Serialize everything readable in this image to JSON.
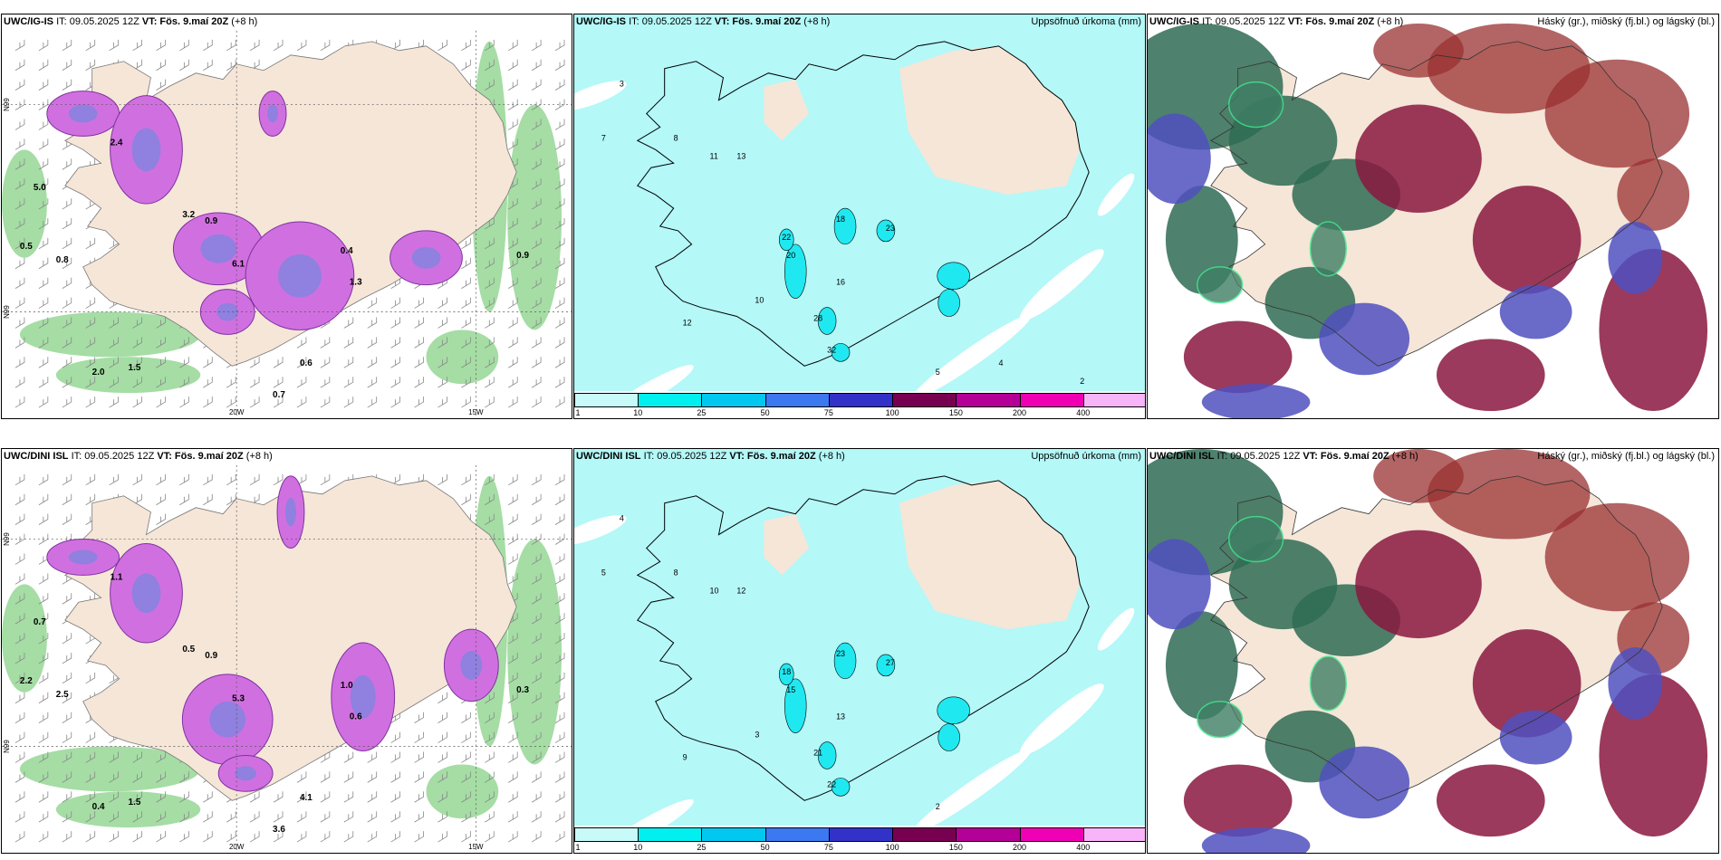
{
  "rows": [
    {
      "model": "UWC/IG-IS",
      "panels": [
        {
          "kind": "wind",
          "it": "IT: 09.05.2025 12Z",
          "vt_label": "VT:",
          "vt": "Fös. 9.maí 20Z",
          "lead": "(+8 h)",
          "right": "",
          "lon_labels": [
            "20W",
            "15W"
          ],
          "lat_labels": [
            "N99",
            "N99"
          ],
          "values": [
            "2.4",
            "3.2",
            "0.9",
            "6.1",
            "0.6",
            "0.7",
            "0.5",
            "2.0",
            "1.5",
            "0.8",
            "5.0",
            "0.4",
            "1.3",
            "0.9"
          ]
        },
        {
          "kind": "precip",
          "it": "IT: 09.05.2025 12Z",
          "vt_label": "VT:",
          "vt": "Fös. 9.maí 20Z",
          "lead": "(+8 h)",
          "right": "Uppsöfnuð úrkoma (mm)",
          "values": [
            "3",
            "7",
            "8",
            "11",
            "13",
            "20",
            "22",
            "28",
            "32",
            "18",
            "23",
            "16",
            "12",
            "10",
            "5",
            "4",
            "2"
          ]
        },
        {
          "kind": "cloud",
          "it": "IT: 09.05.2025 12Z",
          "vt_label": "VT:",
          "vt": "Fös. 9.maí 20Z",
          "lead": "(+8 h)",
          "right": "Háský (gr.), miðský (fj.bl.) og lágský (bl.)"
        }
      ]
    },
    {
      "model": "UWC/DINI ISL",
      "panels": [
        {
          "kind": "wind",
          "it": "IT: 09.05.2025 12Z",
          "vt_label": "VT:",
          "vt": "Fös. 9.maí 20Z",
          "lead": "(+8 h)",
          "right": "",
          "lon_labels": [
            "20W",
            "15W"
          ],
          "lat_labels": [
            "N99",
            "N99"
          ],
          "values": [
            "1.1",
            "0.5",
            "0.9",
            "5.3",
            "4.1",
            "3.6",
            "2.2",
            "0.4",
            "1.5",
            "2.5",
            "0.7",
            "1.0",
            "0.6",
            "0.3"
          ]
        },
        {
          "kind": "precip",
          "it": "IT: 09.05.2025 12Z",
          "vt_label": "VT:",
          "vt": "Fös. 9.maí 20Z",
          "lead": "(+8 h)",
          "right": "Uppsöfnuð úrkoma (mm)",
          "values": [
            "4",
            "5",
            "8",
            "10",
            "12",
            "15",
            "18",
            "21",
            "22",
            "23",
            "27",
            "13",
            "9",
            "3",
            "2"
          ]
        },
        {
          "kind": "cloud",
          "it": "IT: 09.05.2025 12Z",
          "vt_label": "VT:",
          "vt": "Fös. 9.maí 20Z",
          "lead": "(+8 h)",
          "right": "Háský (gr.), miðský (fj.bl.) og lágský (bl.)"
        }
      ]
    }
  ],
  "colorbar": {
    "ticks": [
      "1",
      "10",
      "25",
      "50",
      "75",
      "100",
      "150",
      "200",
      "400"
    ],
    "colors": [
      "#c8fafa",
      "#00f0f0",
      "#00c8f0",
      "#3c78f0",
      "#3232c8",
      "#780050",
      "#b40096",
      "#f000b4",
      "#f8b4f8"
    ]
  },
  "colors": {
    "land": "#f5e6d8",
    "sea": "#ffffff",
    "precip_base": "#b4f8f8",
    "wind_green": "#2e8b3a",
    "wind_magenta": "#c040d0"
  }
}
